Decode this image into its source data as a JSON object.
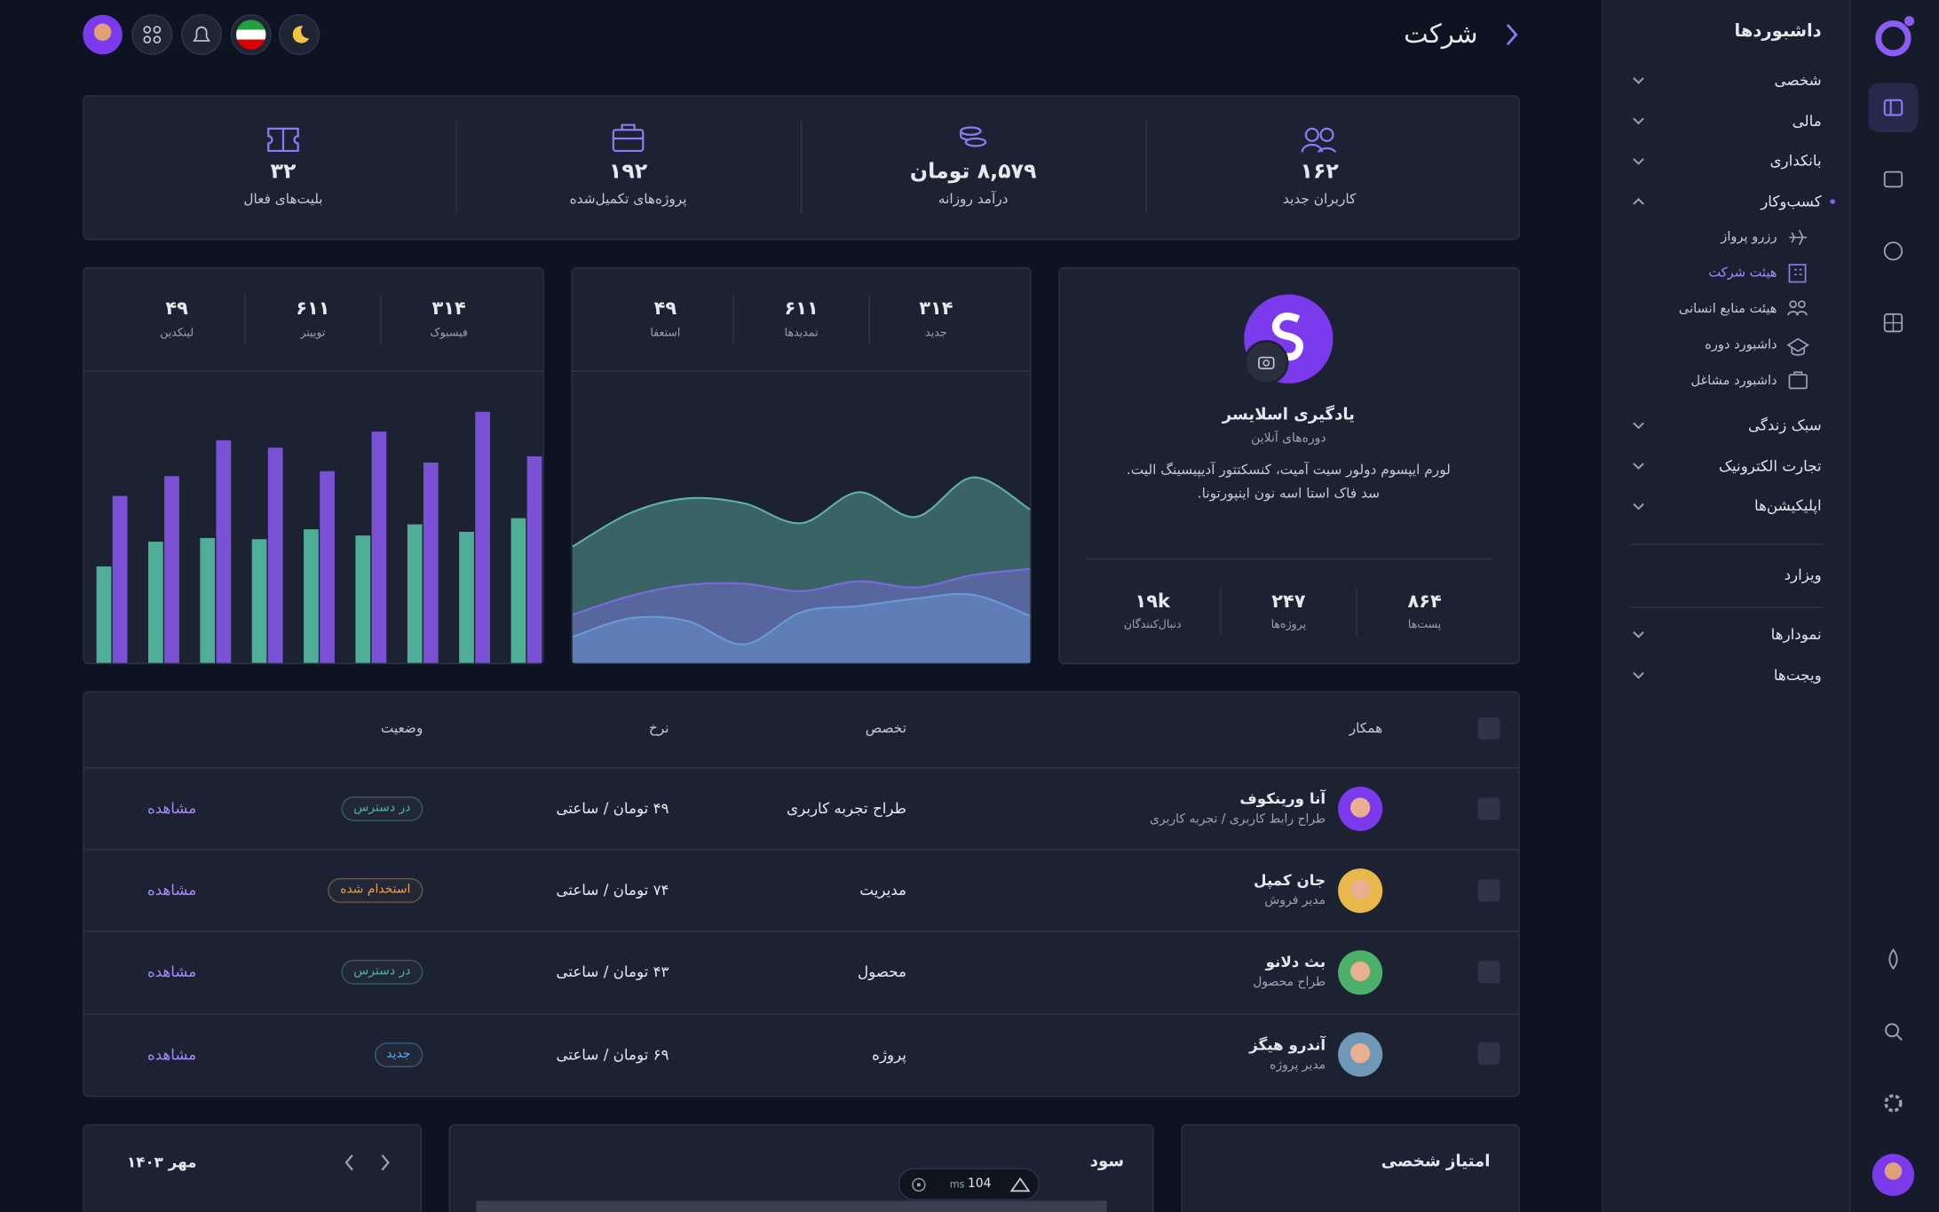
{
  "header": {
    "title": "شرکت"
  },
  "stats": [
    {
      "value": "۱۶۲",
      "label": "کاربران جدید"
    },
    {
      "value": "۸,۵۷۹ تومان",
      "label": "درآمد روزانه"
    },
    {
      "value": "۱۹۲",
      "label": "پروژه‌های تکمیل‌شده"
    },
    {
      "value": "۳۲",
      "label": "بلیت‌های فعال"
    }
  ],
  "profile": {
    "name": "یادگیری اسلایسر",
    "subtitle": "دوره‌های آنلاین",
    "description": [
      "لورم ایپسوم دولور سیت آمیت، کنسکتتور آدیپیسینگ الیت.",
      "سد فاک استا اسه نون اینپورتونا."
    ],
    "stats": [
      {
        "value": "۸۶۴",
        "label": "پست‌ها"
      },
      {
        "value": "۲۴۷",
        "label": "پروژه‌ها"
      },
      {
        "value": "۱۹k",
        "label": "دنبال‌کنندگان"
      }
    ]
  },
  "area_chart": {
    "type": "area",
    "stats": [
      {
        "value": "۳۱۴",
        "label": "جدید"
      },
      {
        "value": "۶۱۱",
        "label": "تمدیدها"
      },
      {
        "value": "۴۹",
        "label": "استعفا"
      }
    ],
    "series": [
      {
        "color": "#5fb3a5",
        "values": [
          94,
          121,
          133,
          129,
          113,
          138,
          118,
          150,
          124
        ]
      },
      {
        "color": "#7c6ae0",
        "values": [
          39,
          54,
          63,
          64,
          58,
          66,
          61,
          71,
          76
        ]
      },
      {
        "color": "#6a9ad8",
        "values": [
          21,
          36,
          34,
          15,
          41,
          46,
          52,
          55,
          38
        ]
      }
    ]
  },
  "bar_chart": {
    "type": "bar",
    "stats": [
      {
        "value": "۳۱۴",
        "label": "فیسبوک"
      },
      {
        "value": "۶۱۱",
        "label": "توییتر"
      },
      {
        "value": "۴۹",
        "label": "لینکدین"
      }
    ],
    "series": [
      {
        "color": "#4fae97",
        "values": [
          78,
          98,
          101,
          100,
          108,
          103,
          112,
          106,
          117
        ]
      },
      {
        "color": "#7b52d6",
        "values": [
          135,
          151,
          180,
          174,
          155,
          187,
          162,
          203,
          167
        ]
      }
    ]
  },
  "table": {
    "columns": [
      "همکار",
      "تخصص",
      "نرخ",
      "وضعیت"
    ],
    "rows": [
      {
        "name": "آنا ورینکوف",
        "role": "طراح رابط کاربری / تجربه کاربری",
        "specialty": "طراح تجربه کاربری",
        "rate": "۴۹ تومان / ساعتی",
        "status": "در دسترس",
        "status_color": "#4fb3a0",
        "avatar_color": "#7c3aed",
        "action": "مشاهده"
      },
      {
        "name": "جان کمپل",
        "role": "مدیر فروش",
        "specialty": "مدیریت",
        "rate": "۷۴ تومان / ساعتی",
        "status": "استخدام شده",
        "status_color": "#e8a050",
        "avatar_color": "#e8b84a",
        "action": "مشاهده"
      },
      {
        "name": "بث دلانو",
        "role": "طراح محصول",
        "specialty": "محصول",
        "rate": "۴۳ تومان / ساعتی",
        "status": "در دسترس",
        "status_color": "#4fb3a0",
        "avatar_color": "#4caf6a",
        "action": "مشاهده"
      },
      {
        "name": "آندرو هیگز",
        "role": "مدیر پروژه",
        "specialty": "پروژه",
        "rate": "۶۹ تومان / ساعتی",
        "status": "جدید",
        "status_color": "#5aa8e8",
        "avatar_color": "#6f98b8",
        "action": "مشاهده"
      }
    ]
  },
  "sidebar": {
    "title": "داشبوردها",
    "groups": [
      {
        "label": "شخصی"
      },
      {
        "label": "مالی"
      },
      {
        "label": "بانکداری"
      },
      {
        "label": "کسب‌وکار",
        "children": [
          "رزرو پرواز",
          "هیئت شرکت",
          "هیئت منابع انسانی",
          "داشبورد دوره",
          "داشبورد مشاغل"
        ]
      },
      {
        "label": "سبک زندگی"
      },
      {
        "label": "تجارت الکترونیک"
      },
      {
        "label": "اپلیکیشن‌ها"
      }
    ],
    "wizard": "ویزارد",
    "more": [
      "نمودارها",
      "ویجت‌ها"
    ]
  },
  "bottom": {
    "score_title": "امتیاز شخصی",
    "profit_title": "سود",
    "calendar_label": "مهر ۱۴۰۳"
  },
  "toolbar": {
    "value": "104",
    "unit": "ms"
  }
}
